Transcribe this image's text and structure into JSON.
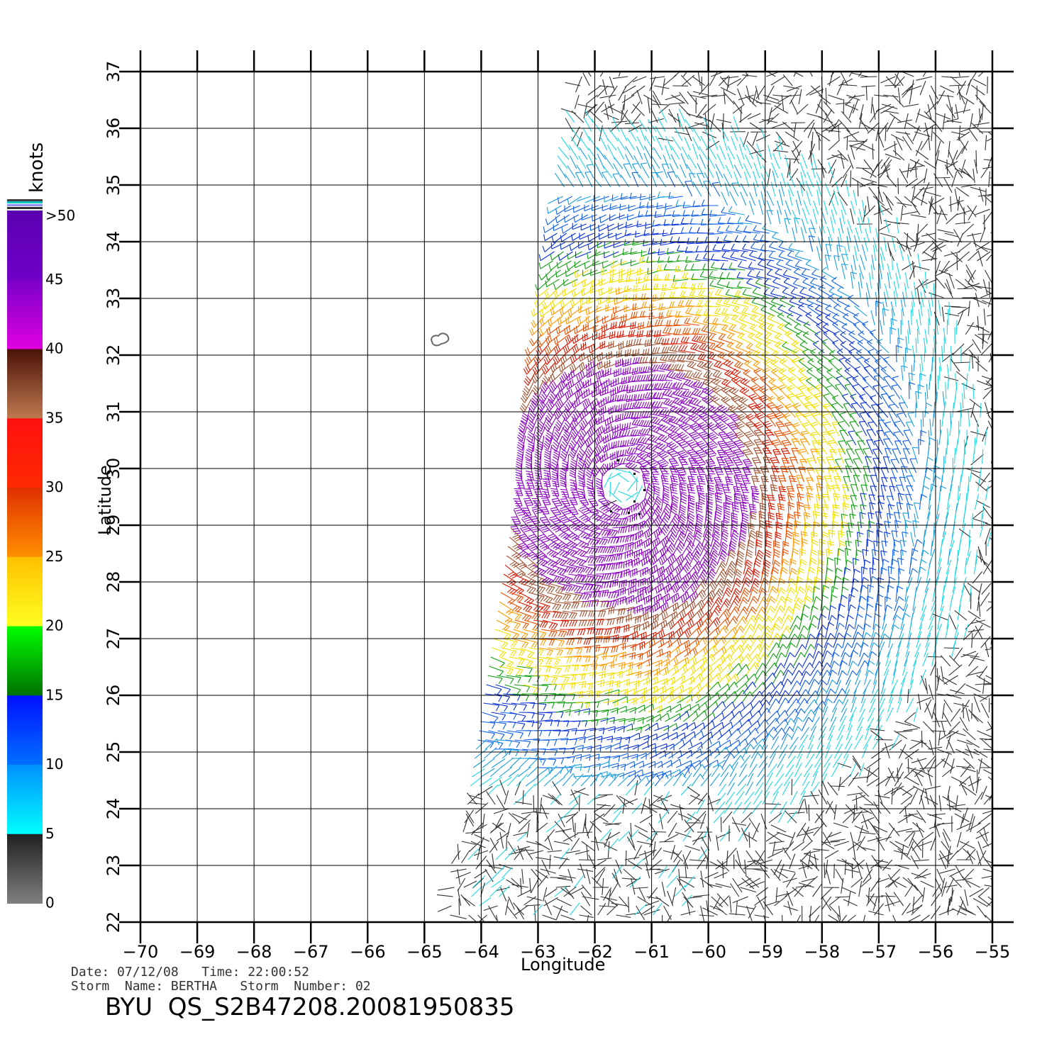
{
  "legend": {
    "unit_label": "knots",
    "levels": [
      {
        "label": ">50",
        "value": 50,
        "color_top": "#5a00b0",
        "color_bottom": "#7000c8"
      },
      {
        "label": "45",
        "value": 45,
        "color_top": "#7a00c8",
        "color_bottom": "#e000e0"
      },
      {
        "label": "40",
        "value": 40,
        "color_top": "#4a1208",
        "color_bottom": "#c07a50"
      },
      {
        "label": "35",
        "value": 35,
        "color_top": "#ff1010",
        "color_bottom": "#ff2a00"
      },
      {
        "label": "30",
        "value": 30,
        "color_top": "#e03000",
        "color_bottom": "#ff9000"
      },
      {
        "label": "25",
        "value": 25,
        "color_top": "#ffc000",
        "color_bottom": "#ffff20"
      },
      {
        "label": "20",
        "value": 20,
        "color_top": "#00ff00",
        "color_bottom": "#007000"
      },
      {
        "label": "15",
        "value": 15,
        "color_top": "#0010ff",
        "color_bottom": "#0070ff"
      },
      {
        "label": "10",
        "value": 10,
        "color_top": "#0090ff",
        "color_bottom": "#00ffff"
      },
      {
        "label": "5",
        "value": 5,
        "color_top": "#202020",
        "color_bottom": "#808080"
      },
      {
        "label": "0",
        "value": 0
      }
    ]
  },
  "map": {
    "lon_ticks": [
      "−70",
      "−69",
      "−68",
      "−67",
      "−66",
      "−65",
      "−64",
      "−63",
      "−62",
      "−61",
      "−60",
      "−59",
      "−58",
      "−57",
      "−56",
      "−55"
    ],
    "lat_ticks": [
      "22",
      "23",
      "24",
      "25",
      "26",
      "27",
      "28",
      "29",
      "30",
      "31",
      "32",
      "33",
      "34",
      "35",
      "36",
      "37"
    ],
    "lon_range": [
      -70,
      -55
    ],
    "lat_range": [
      22,
      37
    ],
    "xlabel": "Longitude",
    "ylabel": "Latitude",
    "storm_center": {
      "lon": -61.5,
      "lat": 29.7
    },
    "island": "Bermuda"
  },
  "info": {
    "date_line": "Date: 07/12/08   Time: 22:00:52",
    "storm_line": "Storm  Name: BERTHA   Storm  Number: 02",
    "title": "BYU  QS_S2B47208.20081950835"
  },
  "colors": {
    "grid": "#000000",
    "background": "#ffffff"
  }
}
